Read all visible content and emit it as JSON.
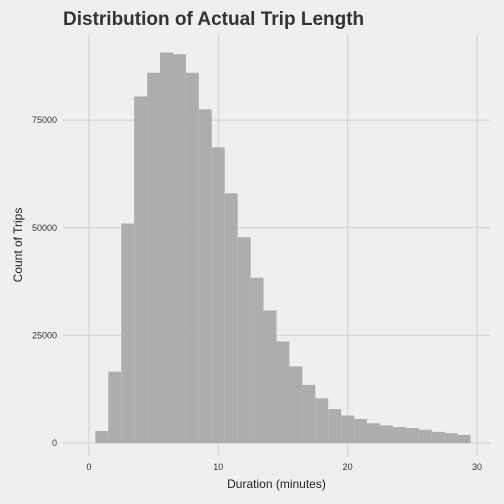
{
  "chart_data": {
    "type": "bar",
    "title": "Distribution of Actual Trip Length",
    "xlabel": "Duration (minutes)",
    "ylabel": "Count of Trips",
    "xlim": [
      -2,
      31
    ],
    "ylim": [
      -3000,
      95000
    ],
    "x_ticks": [
      0,
      10,
      20,
      30
    ],
    "y_ticks": [
      0,
      25000,
      50000,
      75000
    ],
    "y_tick_labels": [
      "0",
      "25000",
      "50000",
      "75000"
    ],
    "bin_width": 1,
    "bins": [
      {
        "x0": 0.5,
        "x1": 1.5,
        "count": 2800
      },
      {
        "x0": 1.5,
        "x1": 2.5,
        "count": 16600
      },
      {
        "x0": 2.5,
        "x1": 3.5,
        "count": 51000
      },
      {
        "x0": 3.5,
        "x1": 4.5,
        "count": 80500
      },
      {
        "x0": 4.5,
        "x1": 5.5,
        "count": 86000
      },
      {
        "x0": 5.5,
        "x1": 6.5,
        "count": 90700
      },
      {
        "x0": 6.5,
        "x1": 7.5,
        "count": 90300
      },
      {
        "x0": 7.5,
        "x1": 8.5,
        "count": 86000
      },
      {
        "x0": 8.5,
        "x1": 9.5,
        "count": 77500
      },
      {
        "x0": 9.5,
        "x1": 10.5,
        "count": 68700
      },
      {
        "x0": 10.5,
        "x1": 11.5,
        "count": 58000
      },
      {
        "x0": 11.5,
        "x1": 12.5,
        "count": 47800
      },
      {
        "x0": 12.5,
        "x1": 13.5,
        "count": 38400
      },
      {
        "x0": 13.5,
        "x1": 14.5,
        "count": 30800
      },
      {
        "x0": 14.5,
        "x1": 15.5,
        "count": 23600
      },
      {
        "x0": 15.5,
        "x1": 16.5,
        "count": 17800
      },
      {
        "x0": 16.5,
        "x1": 17.5,
        "count": 13500
      },
      {
        "x0": 17.5,
        "x1": 18.5,
        "count": 10400
      },
      {
        "x0": 18.5,
        "x1": 19.5,
        "count": 7900
      },
      {
        "x0": 19.5,
        "x1": 20.5,
        "count": 6400
      },
      {
        "x0": 20.5,
        "x1": 21.5,
        "count": 5600
      },
      {
        "x0": 21.5,
        "x1": 22.5,
        "count": 4600
      },
      {
        "x0": 22.5,
        "x1": 23.5,
        "count": 4100
      },
      {
        "x0": 23.5,
        "x1": 24.5,
        "count": 3700
      },
      {
        "x0": 24.5,
        "x1": 25.5,
        "count": 3500
      },
      {
        "x0": 25.5,
        "x1": 26.5,
        "count": 3100
      },
      {
        "x0": 26.5,
        "x1": 27.5,
        "count": 2600
      },
      {
        "x0": 27.5,
        "x1": 28.5,
        "count": 2300
      },
      {
        "x0": 28.5,
        "x1": 29.5,
        "count": 1900
      }
    ],
    "grid": true,
    "bar_color": "#adadad",
    "grid_color": "#d0d0d0",
    "background_color": "#efefef"
  }
}
